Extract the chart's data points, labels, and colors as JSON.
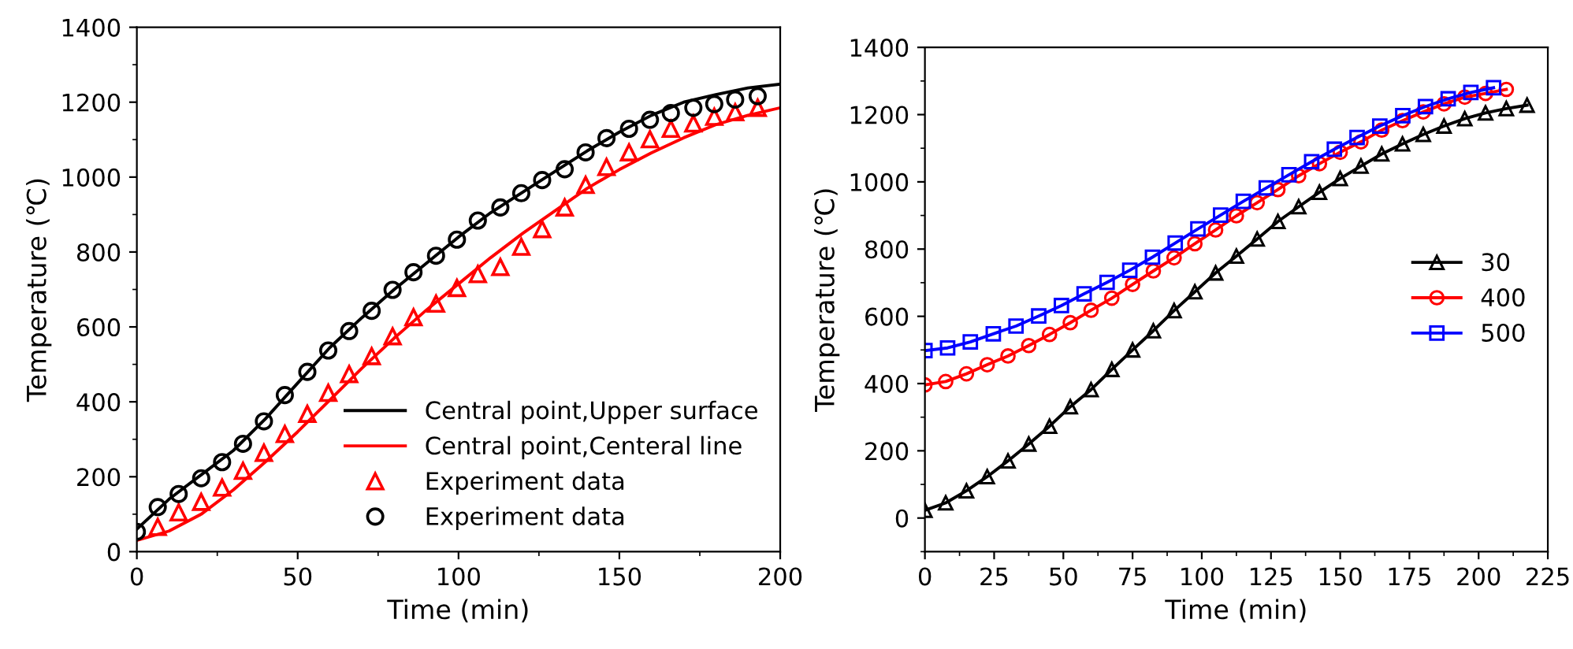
{
  "chart_data": [
    {
      "type": "line",
      "xlabel": "Time (min)",
      "ylabel": "Temperature (℃)",
      "xlim": [
        0,
        200
      ],
      "ylim": [
        0,
        1400
      ],
      "xticks": [
        0,
        50,
        100,
        150,
        200
      ],
      "yticks": [
        0,
        200,
        400,
        600,
        800,
        1000,
        1200,
        1400
      ],
      "legend": "bottom right",
      "grid": false,
      "series": [
        {
          "name": "Central point,Upper surface",
          "color": "#000000",
          "marker": "none",
          "line_style": "solid",
          "x": [
            0,
            10,
            20,
            30,
            40,
            50,
            60,
            70,
            80,
            90,
            100,
            110,
            120,
            130,
            140,
            150,
            160,
            170,
            180,
            190,
            200
          ],
          "values": [
            60,
            140,
            205,
            270,
            355,
            450,
            545,
            625,
            700,
            770,
            840,
            905,
            960,
            1015,
            1070,
            1120,
            1165,
            1200,
            1220,
            1238,
            1248
          ]
        },
        {
          "name": "Central point,Centeral line",
          "color": "#ff0000",
          "marker": "none",
          "line_style": "solid",
          "x": [
            0,
            10,
            20,
            30,
            40,
            50,
            60,
            70,
            80,
            90,
            100,
            110,
            120,
            130,
            140,
            150,
            160,
            170,
            180,
            190,
            200
          ],
          "values": [
            30,
            55,
            100,
            165,
            240,
            320,
            405,
            490,
            570,
            645,
            715,
            785,
            850,
            910,
            970,
            1020,
            1065,
            1105,
            1140,
            1165,
            1185
          ]
        },
        {
          "name": "Experiment data",
          "type": "scatter",
          "color": "#ff0000",
          "marker": "triangle",
          "x": [
            6.5,
            13,
            20,
            26.5,
            33,
            39.5,
            46,
            53,
            59.5,
            66,
            73,
            79.5,
            86,
            93,
            99.5,
            106,
            113,
            119.5,
            126,
            133,
            139.5,
            146,
            153,
            159.5,
            166,
            173,
            179.5,
            186,
            193
          ],
          "values": [
            66,
            105,
            133,
            171,
            216,
            264,
            314,
            368,
            424,
            474,
            522,
            575,
            626,
            662,
            704,
            741,
            760,
            814,
            861,
            919,
            979,
            1027,
            1066,
            1101,
            1129,
            1143,
            1161,
            1173,
            1185
          ]
        },
        {
          "name": "Experiment data",
          "type": "scatter",
          "color": "#000000",
          "marker": "circle",
          "x": [
            0,
            6.5,
            13,
            20,
            26.5,
            33,
            39.5,
            46,
            53,
            59.5,
            66,
            73,
            79.5,
            86,
            93,
            99.5,
            106,
            113,
            119.5,
            126,
            133,
            139.5,
            146,
            153,
            159.5,
            166,
            173,
            179.5,
            186,
            193
          ],
          "values": [
            53,
            119,
            154,
            196,
            239,
            288,
            348,
            418,
            480,
            537,
            589,
            643,
            699,
            746,
            790,
            833,
            884,
            919,
            957,
            992,
            1021,
            1066,
            1104,
            1129,
            1153,
            1171,
            1185,
            1195,
            1207,
            1216
          ]
        }
      ]
    },
    {
      "type": "line",
      "xlabel": "Time (min)",
      "ylabel": "Temperature (℃)",
      "xlim": [
        0,
        225
      ],
      "ylim": [
        -100,
        1400
      ],
      "xticks": [
        0,
        25,
        50,
        75,
        100,
        125,
        150,
        175,
        200,
        225
      ],
      "yticks": [
        0,
        200,
        400,
        600,
        800,
        1000,
        1200,
        1400
      ],
      "legend": "right",
      "grid": false,
      "series": [
        {
          "name": "30",
          "color": "#000000",
          "marker": "triangle",
          "line_style": "solid",
          "x": [
            0,
            7.5,
            15,
            22.5,
            30,
            37.5,
            45,
            52.5,
            60,
            67.5,
            75,
            82.5,
            90,
            97.5,
            105,
            112.5,
            120,
            127.5,
            135,
            142.5,
            150,
            157.5,
            165,
            172.5,
            180,
            187.5,
            195,
            202.5,
            210,
            217.5
          ],
          "values": [
            23,
            45,
            81,
            123,
            170,
            220,
            273,
            331,
            382,
            442,
            500,
            557,
            617,
            673,
            729,
            779,
            830,
            882,
            926,
            969,
            1010,
            1047,
            1083,
            1113,
            1141,
            1166,
            1188,
            1205,
            1218,
            1228
          ]
        },
        {
          "name": "400",
          "color": "#ff0000",
          "marker": "circle",
          "line_style": "solid",
          "x": [
            0,
            7.5,
            15,
            22.5,
            30,
            37.5,
            45,
            52.5,
            60,
            67.5,
            75,
            82.5,
            90,
            97.5,
            105,
            112.5,
            120,
            127.5,
            135,
            142.5,
            150,
            157.5,
            165,
            172.5,
            180,
            187.5,
            195,
            202.5,
            210
          ],
          "values": [
            396,
            406,
            429,
            456,
            482,
            513,
            546,
            581,
            618,
            654,
            695,
            735,
            774,
            816,
            857,
            899,
            938,
            977,
            1018,
            1054,
            1088,
            1119,
            1154,
            1182,
            1208,
            1232,
            1252,
            1263,
            1275
          ]
        },
        {
          "name": "500",
          "color": "#0000ff",
          "marker": "square",
          "line_style": "solid",
          "x": [
            0,
            8.2,
            16.4,
            24.7,
            32.9,
            41.1,
            49.3,
            57.5,
            65.8,
            74,
            82.2,
            90.4,
            98.6,
            106.8,
            115,
            123.3,
            131.5,
            139.7,
            147.9,
            156.1,
            164.3,
            172.6,
            180.8,
            189,
            197.2,
            205.4
          ],
          "values": [
            498,
            506,
            524,
            548,
            571,
            601,
            632,
            667,
            701,
            737,
            776,
            818,
            860,
            901,
            942,
            982,
            1021,
            1060,
            1097,
            1132,
            1166,
            1197,
            1224,
            1247,
            1266,
            1280
          ]
        }
      ]
    }
  ]
}
